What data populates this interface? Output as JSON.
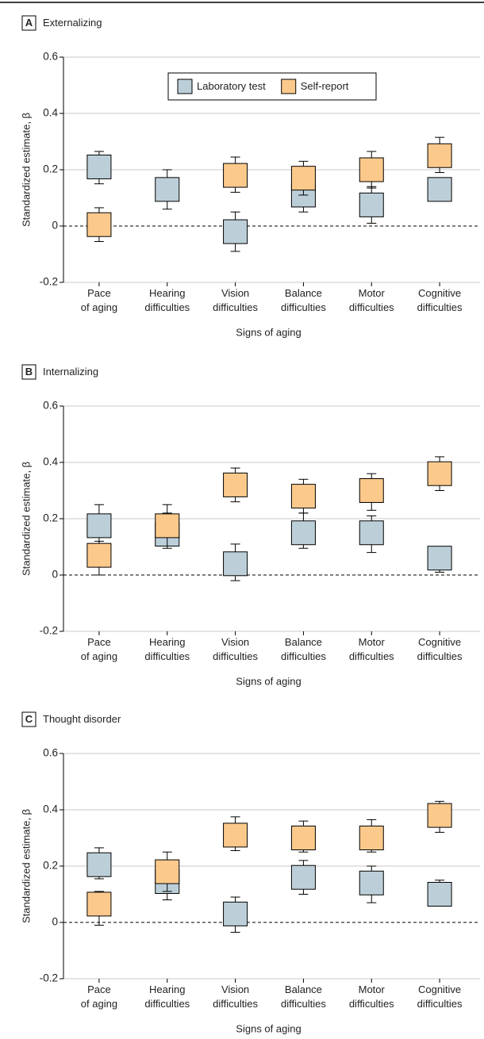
{
  "chart_data": [
    {
      "type": "errorbar",
      "panel": "A",
      "title": "Externalizing",
      "x_label": "Signs of aging",
      "y_label": "Standardized estimate, β",
      "categories": [
        "Pace of aging",
        "Hearing difficulties",
        "Vision difficulties",
        "Balance difficulties",
        "Motor difficulties",
        "Cognitive difficulties"
      ],
      "ylim": [
        -0.2,
        0.6
      ],
      "yticks": [
        {
          "value": -0.2,
          "label": "-0.2"
        },
        0,
        0.2,
        0.4,
        0.6
      ],
      "grid": true,
      "legend": "top",
      "series": [
        {
          "name": "Laboratory test",
          "color": "#bccfd9",
          "values": [
            0.21,
            0.13,
            -0.02,
            0.11,
            0.075,
            0.13
          ],
          "lower": [
            0.15,
            0.06,
            -0.09,
            0.05,
            0.01,
            0.09
          ],
          "upper": [
            0.265,
            0.2,
            0.05,
            0.17,
            0.14,
            0.165
          ]
        },
        {
          "name": "Self-report",
          "color": "#fcc98c",
          "values": [
            0.005,
            null,
            0.18,
            0.17,
            0.2,
            0.25
          ],
          "lower": [
            -0.055,
            null,
            0.12,
            0.11,
            0.135,
            0.19
          ],
          "upper": [
            0.065,
            null,
            0.245,
            0.23,
            0.265,
            0.315
          ]
        }
      ]
    },
    {
      "type": "errorbar",
      "panel": "B",
      "title": "Internalizing",
      "x_label": "Signs of aging",
      "y_label": "Standardized estimate, β",
      "categories": [
        "Pace of aging",
        "Hearing difficulties",
        "Vision difficulties",
        "Balance difficulties",
        "Motor difficulties",
        "Cognitive difficulties"
      ],
      "ylim": [
        -0.2,
        0.6
      ],
      "yticks": [
        {
          "value": -0.2,
          "label": "-0.2"
        },
        0,
        0.2,
        0.4,
        0.6
      ],
      "grid": true,
      "series": [
        {
          "color": "#bccfd9",
          "values": [
            0.175,
            0.145,
            0.04,
            0.15,
            0.15,
            0.06
          ],
          "lower": [
            0.11,
            0.11,
            -0.02,
            0.095,
            0.08,
            0.01
          ],
          "upper": [
            0.25,
            0.22,
            0.11,
            0.22,
            0.21,
            0.1
          ]
        },
        {
          "color": "#fcc98c",
          "values": [
            0.07,
            0.175,
            0.32,
            0.28,
            0.3,
            0.36
          ],
          "lower": [
            0.0,
            0.095,
            0.26,
            0.22,
            0.23,
            0.3
          ],
          "upper": [
            0.12,
            0.25,
            0.38,
            0.34,
            0.36,
            0.42
          ]
        }
      ]
    },
    {
      "type": "errorbar",
      "panel": "C",
      "title": "Thought disorder",
      "x_label": "Signs of aging",
      "y_label": "Standardized estimate, β",
      "categories": [
        "Pace of aging",
        "Hearing difficulties",
        "Vision difficulties",
        "Balance difficulties",
        "Motor difficulties",
        "Cognitive difficulties"
      ],
      "ylim": [
        -0.2,
        0.6
      ],
      "yticks": [
        {
          "value": -0.2,
          "label": "-0.2"
        },
        0,
        0.2,
        0.4,
        0.6
      ],
      "grid": true,
      "series": [
        {
          "color": "#bccfd9",
          "values": [
            0.205,
            0.145,
            0.03,
            0.16,
            0.14,
            0.1
          ],
          "lower": [
            0.155,
            0.08,
            -0.035,
            0.1,
            0.07,
            0.06
          ],
          "upper": [
            0.265,
            0.2,
            0.09,
            0.22,
            0.2,
            0.15
          ]
        },
        {
          "color": "#fcc98c",
          "values": [
            0.065,
            0.18,
            0.31,
            0.3,
            0.3,
            0.38
          ],
          "lower": [
            -0.01,
            0.11,
            0.255,
            0.25,
            0.25,
            0.32
          ],
          "upper": [
            0.11,
            0.25,
            0.375,
            0.36,
            0.365,
            0.43
          ]
        }
      ]
    }
  ]
}
